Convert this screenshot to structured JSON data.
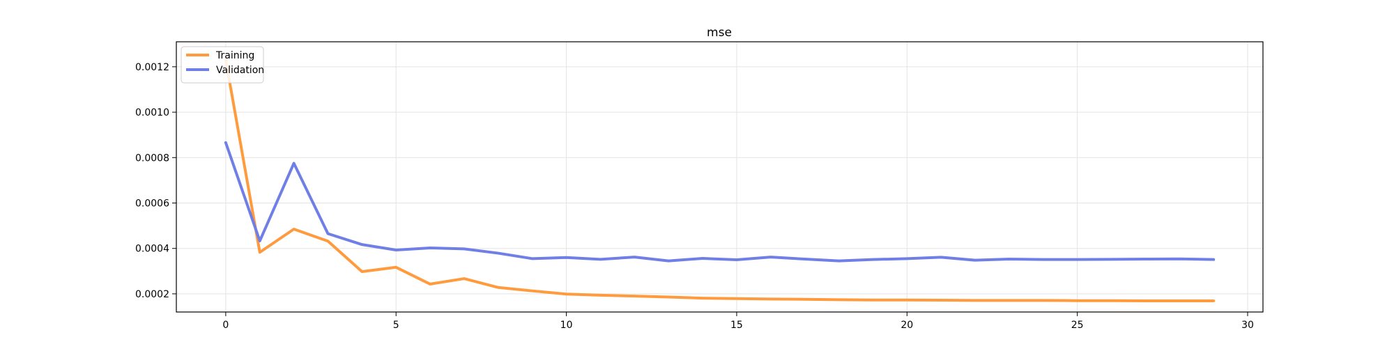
{
  "chart_data": {
    "type": "line",
    "title": "mse",
    "xlabel": "",
    "ylabel": "",
    "xlim": [
      -1.45,
      30.45
    ],
    "ylim": [
      0.00012,
      0.00131
    ],
    "xticks": [
      0,
      5,
      10,
      15,
      20,
      25,
      30
    ],
    "xtick_labels": [
      "0",
      "5",
      "10",
      "15",
      "20",
      "25",
      "30"
    ],
    "yticks": [
      0.0002,
      0.0004,
      0.0006,
      0.0008,
      0.001,
      0.0012
    ],
    "ytick_labels": [
      "0.0002",
      "0.0004",
      "0.0006",
      "0.0008",
      "0.0010",
      "0.0012"
    ],
    "grid": true,
    "legend_position": "top-left",
    "x": [
      0,
      1,
      2,
      3,
      4,
      5,
      6,
      7,
      8,
      9,
      10,
      11,
      12,
      13,
      14,
      15,
      16,
      17,
      18,
      19,
      20,
      21,
      22,
      23,
      24,
      25,
      26,
      27,
      28,
      29
    ],
    "series": [
      {
        "name": "Training",
        "color": "#FF9A3D",
        "values": [
          0.00123,
          0.000383,
          0.000485,
          0.000432,
          0.000298,
          0.000317,
          0.000243,
          0.000267,
          0.000228,
          0.000213,
          0.000199,
          0.000194,
          0.00019,
          0.000186,
          0.000181,
          0.000179,
          0.000177,
          0.000176,
          0.000174,
          0.000173,
          0.000173,
          0.000172,
          0.000171,
          0.000171,
          0.000171,
          0.00017,
          0.00017,
          0.000169,
          0.000169,
          0.000169
        ]
      },
      {
        "name": "Validation",
        "color": "#6F7FE6",
        "values": [
          0.000866,
          0.000433,
          0.000775,
          0.000465,
          0.000417,
          0.000393,
          0.000402,
          0.000398,
          0.000379,
          0.000355,
          0.00036,
          0.000352,
          0.000362,
          0.000345,
          0.000356,
          0.00035,
          0.000362,
          0.000353,
          0.000345,
          0.000351,
          0.000355,
          0.000361,
          0.000348,
          0.000353,
          0.000351,
          0.000351,
          0.000352,
          0.000353,
          0.000354,
          0.000351
        ]
      }
    ]
  }
}
